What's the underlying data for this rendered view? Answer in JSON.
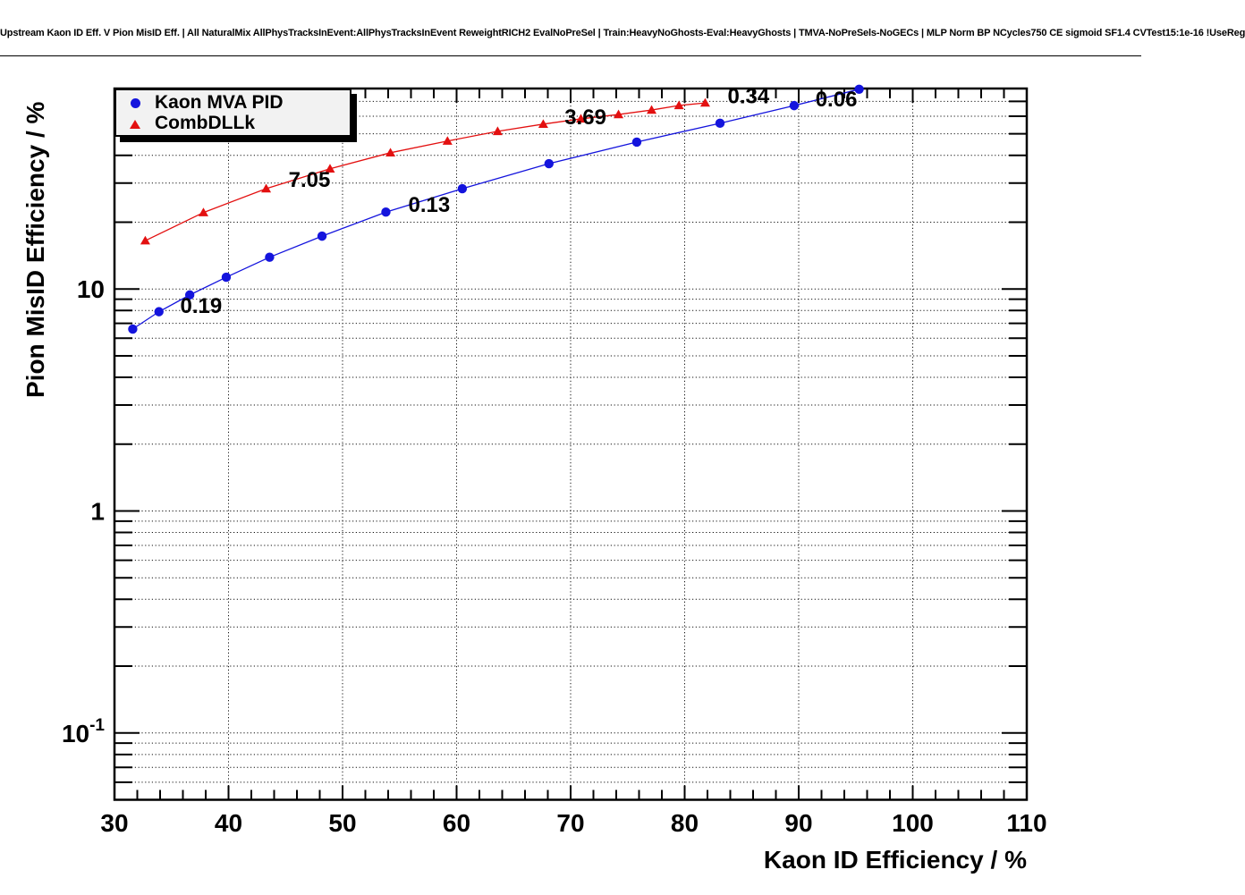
{
  "canvas_title": "Upstream Kaon ID Eff. V Pion MisID Eff. | All NaturalMix AllPhysTracksInEvent:AllPhysTracksInEvent ReweightRICH2 EvalNoPreSel | Train:HeavyNoGhosts-Eval:HeavyGhosts | TMVA-NoPreSels-NoGECs | MLP Norm BP NCycles750 CE sigmoid SF1.4 CVTest15:1e-16 !UseReg",
  "legend": {
    "entries": [
      {
        "label": "Kaon MVA PID",
        "marker": "circle",
        "color": "#1414dd"
      },
      {
        "label": "CombDLLk",
        "marker": "triangle",
        "color": "#e31010"
      }
    ]
  },
  "chart_data": {
    "type": "line",
    "title": "",
    "xlabel": "Kaon ID Efficiency / %",
    "ylabel": "Pion MisID Efficiency / %",
    "xlim": [
      30,
      110
    ],
    "ylim": [
      0.05,
      80
    ],
    "yscale": "log",
    "grid": true,
    "legend_position": "top-left",
    "x_major_ticks": [
      30,
      40,
      50,
      60,
      70,
      80,
      90,
      100,
      110
    ],
    "x_tick_labels": [
      "30",
      "40",
      "50",
      "60",
      "70",
      "80",
      "90",
      "100",
      "110"
    ],
    "x_minor_step": 2,
    "y_tick_labels": [
      {
        "value": 10,
        "base": "10",
        "exp": ""
      },
      {
        "value": 1,
        "base": "1",
        "exp": ""
      },
      {
        "value": 0.1,
        "base": "10",
        "exp": "-1"
      }
    ],
    "series": [
      {
        "name": "Kaon MVA PID",
        "color": "#1414dd",
        "marker": "circle",
        "x": [
          31.6,
          33.9,
          36.6,
          39.8,
          43.6,
          48.2,
          53.8,
          60.5,
          68.1,
          75.8,
          83.1,
          89.6,
          95.3
        ],
        "y": [
          6.6,
          7.9,
          9.4,
          11.3,
          13.9,
          17.3,
          22.2,
          28.3,
          36.7,
          45.9,
          55.8,
          67.0,
          79.4
        ]
      },
      {
        "name": "CombDLLk",
        "color": "#e31010",
        "marker": "triangle",
        "x": [
          32.7,
          37.8,
          43.3,
          48.9,
          54.2,
          59.2,
          63.6,
          67.6,
          70.9,
          74.2,
          77.1,
          79.5,
          81.8
        ],
        "y": [
          16.5,
          22.1,
          28.3,
          34.8,
          41.1,
          46.4,
          51.3,
          55.3,
          58.4,
          61.1,
          64.0,
          67.1,
          68.9
        ]
      }
    ],
    "annotations": [
      {
        "text": "0.19",
        "x": 37.6,
        "y": 8.45,
        "color": "#1414dd"
      },
      {
        "text": "0.13",
        "x": 57.6,
        "y": 24.1,
        "color": "#1414dd"
      },
      {
        "text": "0.06",
        "x": 93.3,
        "y": 72.0,
        "color": "#1414dd"
      },
      {
        "text": "7.05",
        "x": 47.1,
        "y": 31.2,
        "color": "#e31010"
      },
      {
        "text": "3.69",
        "x": 71.3,
        "y": 59.6,
        "color": "#e31010"
      },
      {
        "text": "0.34",
        "x": 85.6,
        "y": 74.3,
        "color": "#e31010"
      }
    ]
  }
}
